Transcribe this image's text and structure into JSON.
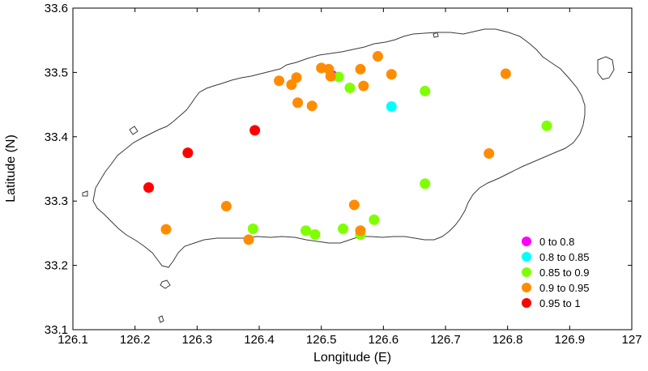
{
  "chart_data": {
    "type": "scatter",
    "title": "",
    "xlabel": "Longitude (E)",
    "ylabel": "Latitude (N)",
    "xlim": [
      126.1,
      127.0
    ],
    "ylim": [
      33.1,
      33.6
    ],
    "xticks": [
      "126.1",
      "126.2",
      "126.3",
      "126.4",
      "126.5",
      "126.6",
      "126.7",
      "126.8",
      "126.9",
      "127"
    ],
    "yticks": [
      "33.1",
      "33.2",
      "33.3",
      "33.4",
      "33.5",
      "33.6"
    ],
    "grid": false,
    "legend_position": "bottom-right",
    "series": [
      {
        "name": "0 to 0.8",
        "color": "#ff00ff",
        "points": [
          [
            126.518,
            33.495
          ]
        ]
      },
      {
        "name": "0.8 to 0.85",
        "color": "#00ffff",
        "points": [
          [
            126.613,
            33.447
          ]
        ]
      },
      {
        "name": "0.85 to 0.9",
        "color": "#7fff00",
        "points": [
          [
            126.528,
            33.493
          ],
          [
            126.546,
            33.476
          ],
          [
            126.667,
            33.471
          ],
          [
            126.863,
            33.417
          ],
          [
            126.667,
            33.327
          ],
          [
            126.585,
            33.271
          ],
          [
            126.563,
            33.248
          ],
          [
            126.535,
            33.257
          ],
          [
            126.49,
            33.248
          ],
          [
            126.475,
            33.254
          ],
          [
            126.39,
            33.257
          ]
        ]
      },
      {
        "name": "0.9 to 0.95",
        "color": "#ff8c00",
        "points": [
          [
            126.432,
            33.487
          ],
          [
            126.452,
            33.481
          ],
          [
            126.46,
            33.492
          ],
          [
            126.5,
            33.507
          ],
          [
            126.512,
            33.505
          ],
          [
            126.515,
            33.494
          ],
          [
            126.563,
            33.505
          ],
          [
            126.591,
            33.525
          ],
          [
            126.613,
            33.497
          ],
          [
            126.568,
            33.479
          ],
          [
            126.462,
            33.453
          ],
          [
            126.485,
            33.448
          ],
          [
            126.797,
            33.498
          ],
          [
            126.77,
            33.374
          ],
          [
            126.347,
            33.292
          ],
          [
            126.25,
            33.256
          ],
          [
            126.383,
            33.24
          ],
          [
            126.553,
            33.294
          ],
          [
            126.563,
            33.254
          ]
        ]
      },
      {
        "name": "0.95 to 1",
        "color": "#ff0000",
        "points": [
          [
            126.393,
            33.41
          ],
          [
            126.285,
            33.375
          ],
          [
            126.222,
            33.321
          ]
        ]
      }
    ]
  }
}
